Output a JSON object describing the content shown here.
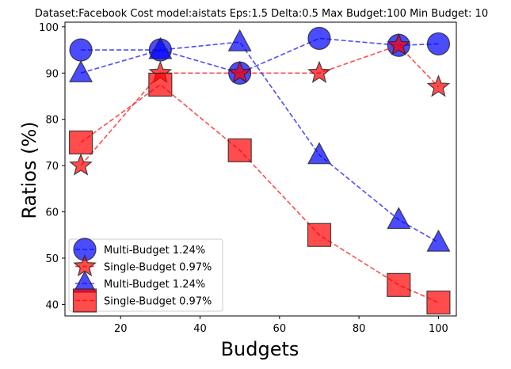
{
  "chart_data": {
    "type": "line",
    "title": "Dataset:Facebook Cost model:aistats Eps:1.5 Delta:0.5 Max Budget:100 Min Budget: 10",
    "xlabel": "Budgets",
    "ylabel": "Ratios (%)",
    "xlim": [
      6,
      104.5
    ],
    "ylim": [
      37.5,
      101
    ],
    "xticks": [
      20,
      40,
      60,
      80,
      100
    ],
    "yticks": [
      40,
      50,
      60,
      70,
      80,
      90,
      100
    ],
    "grid": false,
    "legend_position": "lower-left",
    "x": [
      10,
      30,
      50,
      70,
      90,
      100
    ],
    "series": [
      {
        "name": "Multi-Budget 1.24%",
        "marker": "circle",
        "color": "#0000ff",
        "values": [
          95,
          95,
          90,
          97.5,
          96,
          96.3
        ]
      },
      {
        "name": "Single-Budget 0.97%",
        "marker": "star",
        "color": "#ff0000",
        "values": [
          70,
          90,
          90,
          90,
          96,
          87
        ]
      },
      {
        "name": "Multi-Budget 1.24%",
        "marker": "triangle",
        "color": "#0000ff",
        "values": [
          90,
          95,
          96.7,
          72.3,
          58.3,
          53.4
        ]
      },
      {
        "name": "Single-Budget 0.97%",
        "marker": "square",
        "color": "#ff0000",
        "values": [
          75,
          87.5,
          73.3,
          55,
          44.2,
          40.4
        ]
      }
    ]
  }
}
